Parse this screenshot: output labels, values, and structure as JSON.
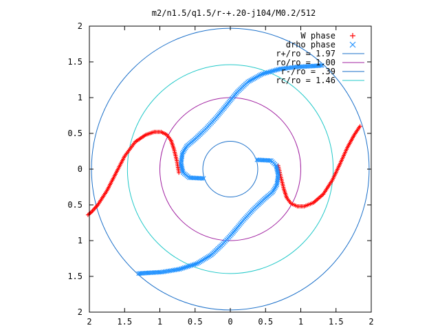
{
  "chart_data": {
    "type": "scatter",
    "title": "m2/n1.5/q1.5/r-+.20-j104/M0.2/512",
    "xlabel": "",
    "ylabel": "",
    "xlim": [
      -2,
      2
    ],
    "ylim": [
      -2,
      2
    ],
    "x_ticks": [
      "2",
      "1.5",
      "1",
      "0.5",
      "0",
      "0.5",
      "1",
      "1.5",
      "2"
    ],
    "y_ticks": [
      "2",
      "1.5",
      "1",
      "0.5",
      "0",
      "0.5",
      "1",
      "1.5",
      "2"
    ],
    "grid": false,
    "legend_position": "top-right",
    "series": [
      {
        "name": "W phase",
        "marker": "plus",
        "color": "#ff0000",
        "points": [
          [
            -0.73,
            -0.05
          ],
          [
            -0.76,
            0.12
          ],
          [
            -0.8,
            0.28
          ],
          [
            -0.84,
            0.4
          ],
          [
            -0.9,
            0.48
          ],
          [
            -0.98,
            0.52
          ],
          [
            -1.08,
            0.52
          ],
          [
            -1.2,
            0.48
          ],
          [
            -1.35,
            0.38
          ],
          [
            -1.5,
            0.18
          ],
          [
            -1.62,
            -0.05
          ],
          [
            -1.75,
            -0.3
          ],
          [
            -1.88,
            -0.5
          ],
          [
            -1.97,
            -0.6
          ],
          [
            -2.02,
            -0.64
          ],
          [
            0.68,
            0.05
          ],
          [
            0.72,
            -0.12
          ],
          [
            0.76,
            -0.28
          ],
          [
            0.8,
            -0.4
          ],
          [
            0.86,
            -0.48
          ],
          [
            0.95,
            -0.52
          ],
          [
            1.05,
            -0.52
          ],
          [
            1.18,
            -0.47
          ],
          [
            1.32,
            -0.35
          ],
          [
            1.45,
            -0.15
          ],
          [
            1.56,
            0.08
          ],
          [
            1.66,
            0.3
          ],
          [
            1.76,
            0.48
          ],
          [
            1.84,
            0.6
          ]
        ]
      },
      {
        "name": "drho phase",
        "marker": "cross",
        "color": "#1e90ff",
        "points": [
          [
            -0.38,
            -0.13
          ],
          [
            -0.58,
            -0.12
          ],
          [
            -0.67,
            -0.05
          ],
          [
            -0.7,
            0.08
          ],
          [
            -0.68,
            0.22
          ],
          [
            -0.62,
            0.32
          ],
          [
            -0.5,
            0.42
          ],
          [
            -0.35,
            0.56
          ],
          [
            -0.2,
            0.72
          ],
          [
            -0.05,
            0.9
          ],
          [
            0.1,
            1.08
          ],
          [
            0.25,
            1.22
          ],
          [
            0.45,
            1.33
          ],
          [
            0.7,
            1.4
          ],
          [
            0.95,
            1.43
          ],
          [
            1.15,
            1.44
          ],
          [
            1.3,
            1.45
          ],
          [
            0.38,
            0.13
          ],
          [
            0.58,
            0.12
          ],
          [
            0.65,
            0.05
          ],
          [
            0.68,
            -0.08
          ],
          [
            0.66,
            -0.22
          ],
          [
            0.6,
            -0.32
          ],
          [
            0.48,
            -0.42
          ],
          [
            0.33,
            -0.56
          ],
          [
            0.18,
            -0.72
          ],
          [
            0.03,
            -0.9
          ],
          [
            -0.12,
            -1.06
          ],
          [
            -0.27,
            -1.2
          ],
          [
            -0.47,
            -1.32
          ],
          [
            -0.72,
            -1.4
          ],
          [
            -0.97,
            -1.44
          ],
          [
            -1.15,
            -1.45
          ],
          [
            -1.3,
            -1.46
          ]
        ]
      },
      {
        "name": "r+/ro = 1.97",
        "type": "circle",
        "radius": 1.97,
        "color": "#1a6fc9"
      },
      {
        "name": "ro/ro = 1.00",
        "type": "circle",
        "radius": 1.0,
        "color": "#a020a0"
      },
      {
        "name": "r-/ro = .39",
        "type": "circle",
        "radius": 0.39,
        "color": "#1a6fc9"
      },
      {
        "name": "rc/ro = 1.46",
        "type": "circle",
        "radius": 1.46,
        "color": "#20c8c8"
      }
    ]
  }
}
